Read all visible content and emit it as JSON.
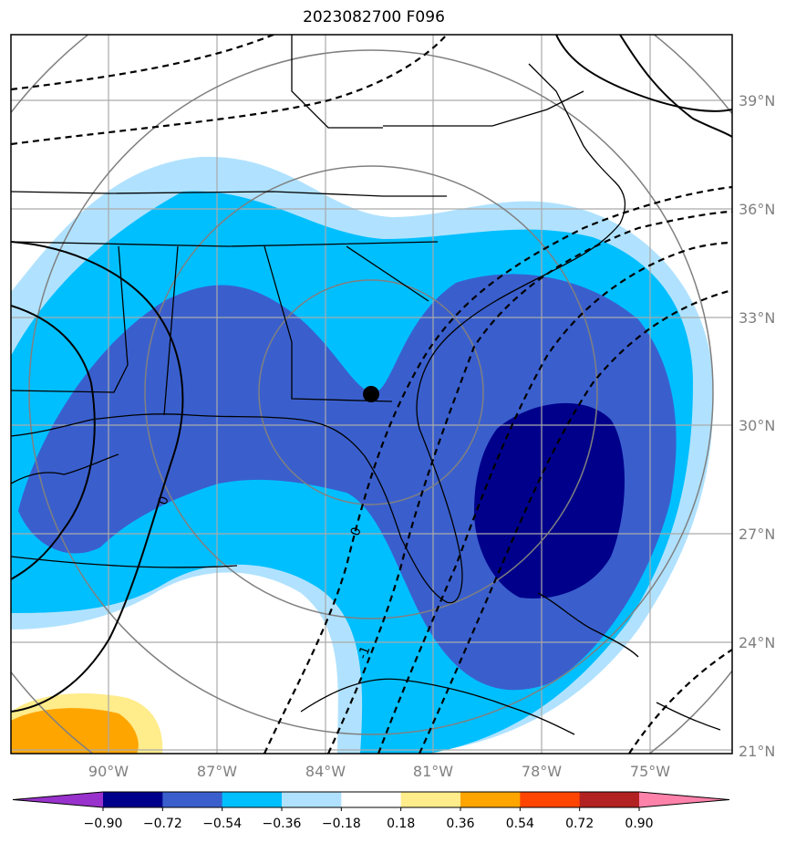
{
  "title": "2023082700 F096",
  "map": {
    "longitude_labels": [
      "90°W",
      "87°W",
      "84°W",
      "81°W",
      "78°W",
      "75°W"
    ],
    "latitude_labels": [
      "39°N",
      "36°N",
      "33°N",
      "30°N",
      "27°N",
      "24°N",
      "21°N"
    ],
    "contour_labels": [
      "0",
      "0",
      "-1"
    ],
    "marker": "storm-center-dot"
  },
  "colorbar": {
    "ticks": [
      "−0.90",
      "−0.72",
      "−0.54",
      "−0.36",
      "−0.18",
      "0.18",
      "0.36",
      "0.54",
      "0.72",
      "0.90"
    ],
    "colors": [
      "#9932cc",
      "#00008b",
      "#3a5fcd",
      "#00bfff",
      "#b0e2ff",
      "#ffffff",
      "#ffec8b",
      "#ffa500",
      "#ff4500",
      "#b22222",
      "#ff82ab"
    ]
  }
}
